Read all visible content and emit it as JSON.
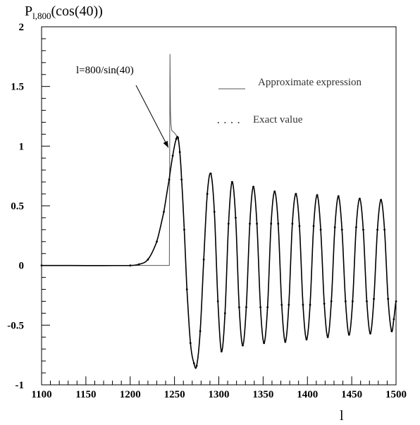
{
  "chart_data": {
    "type": "line",
    "title": "",
    "ylabel": {
      "main": "P",
      "subscript": "l,800",
      "rest": "(cos(40))"
    },
    "xlabel": "l",
    "xlim": [
      1100,
      1500
    ],
    "ylim": [
      -1,
      2
    ],
    "x_ticks": [
      "1100",
      "1150",
      "1200",
      "1250",
      "1300",
      "1350",
      "1400",
      "1450",
      "1500"
    ],
    "y_ticks": [
      "-1",
      "-0.5",
      "0",
      "0.5",
      "1",
      "1.5",
      "2"
    ],
    "grid": false,
    "legend": {
      "placement": "top-right",
      "entries": [
        {
          "label": "Approximate expression",
          "style": "solid"
        },
        {
          "label": "Exact value",
          "style": "dotted"
        }
      ]
    },
    "annotation": {
      "text": "l=800/sin(40)",
      "points_to": {
        "x": 1244.6,
        "y": 1.0
      }
    },
    "series": [
      {
        "name": "Approximate expression",
        "style": "solid",
        "color": "#555555",
        "x": [
          1100,
          1244.2,
          1244.6,
          1244.9,
          1245.4,
          1246,
          1247,
          1248.5,
          1250,
          1252,
          1254,
          1256,
          1258,
          1261,
          1264,
          1268,
          1272,
          1275,
          1279,
          1283,
          1287,
          1291,
          1295,
          1299,
          1303,
          1307,
          1311,
          1315,
          1319,
          1323,
          1327,
          1331,
          1335,
          1339,
          1343,
          1347,
          1351,
          1355,
          1359,
          1363,
          1367,
          1371,
          1375,
          1379,
          1383,
          1387,
          1391,
          1395,
          1399,
          1403,
          1407,
          1411,
          1415,
          1419,
          1423,
          1427,
          1431,
          1435,
          1439,
          1443,
          1447,
          1451,
          1455,
          1459,
          1463,
          1467,
          1471,
          1475,
          1479,
          1483,
          1487,
          1491,
          1495,
          1497.5,
          1500
        ],
        "y": [
          0,
          0,
          1.0,
          1.77,
          1.3,
          1.18,
          1.13,
          1.12,
          1.11,
          1.09,
          1.06,
          0.95,
          0.72,
          0.3,
          -0.2,
          -0.65,
          -0.82,
          -0.84,
          -0.55,
          0.05,
          0.6,
          0.77,
          0.45,
          -0.3,
          -0.72,
          -0.4,
          0.35,
          0.7,
          0.4,
          -0.35,
          -0.67,
          -0.35,
          0.35,
          0.66,
          0.35,
          -0.35,
          -0.65,
          -0.35,
          0.35,
          0.62,
          0.35,
          -0.33,
          -0.64,
          -0.33,
          0.35,
          0.6,
          0.33,
          -0.33,
          -0.62,
          -0.33,
          0.33,
          0.59,
          0.3,
          -0.32,
          -0.6,
          -0.3,
          0.32,
          0.58,
          0.3,
          -0.3,
          -0.58,
          -0.3,
          0.32,
          0.56,
          0.3,
          -0.3,
          -0.57,
          -0.28,
          0.3,
          0.55,
          0.3,
          -0.28,
          -0.55,
          -0.45,
          -0.3
        ]
      },
      {
        "name": "Exact value",
        "style": "dotted",
        "color": "#000000",
        "x": [
          1100,
          1200,
          1210,
          1220,
          1230,
          1238,
          1244,
          1248,
          1252,
          1254,
          1256,
          1258,
          1261,
          1264,
          1268,
          1272,
          1275,
          1279,
          1283,
          1287,
          1291,
          1295,
          1299,
          1303,
          1307,
          1311,
          1315,
          1319,
          1323,
          1327,
          1331,
          1335,
          1339,
          1343,
          1347,
          1351,
          1355,
          1359,
          1363,
          1367,
          1371,
          1375,
          1379,
          1383,
          1387,
          1391,
          1395,
          1399,
          1403,
          1407,
          1411,
          1415,
          1419,
          1423,
          1427,
          1431,
          1435,
          1439,
          1443,
          1447,
          1451,
          1455,
          1459,
          1463,
          1467,
          1471,
          1475,
          1479,
          1483,
          1487,
          1491,
          1495,
          1497.5,
          1500
        ],
        "y": [
          0,
          0,
          0.01,
          0.05,
          0.2,
          0.45,
          0.72,
          0.92,
          1.06,
          1.07,
          0.95,
          0.72,
          0.3,
          -0.2,
          -0.65,
          -0.82,
          -0.84,
          -0.55,
          0.05,
          0.6,
          0.77,
          0.45,
          -0.3,
          -0.72,
          -0.4,
          0.35,
          0.7,
          0.4,
          -0.35,
          -0.67,
          -0.35,
          0.35,
          0.66,
          0.35,
          -0.35,
          -0.65,
          -0.35,
          0.35,
          0.62,
          0.35,
          -0.33,
          -0.64,
          -0.33,
          0.35,
          0.6,
          0.33,
          -0.33,
          -0.62,
          -0.33,
          0.33,
          0.59,
          0.3,
          -0.32,
          -0.6,
          -0.3,
          0.32,
          0.58,
          0.3,
          -0.3,
          -0.58,
          -0.3,
          0.32,
          0.56,
          0.3,
          -0.3,
          -0.57,
          -0.28,
          0.3,
          0.55,
          0.3,
          -0.28,
          -0.55,
          -0.45,
          -0.3
        ]
      }
    ]
  }
}
